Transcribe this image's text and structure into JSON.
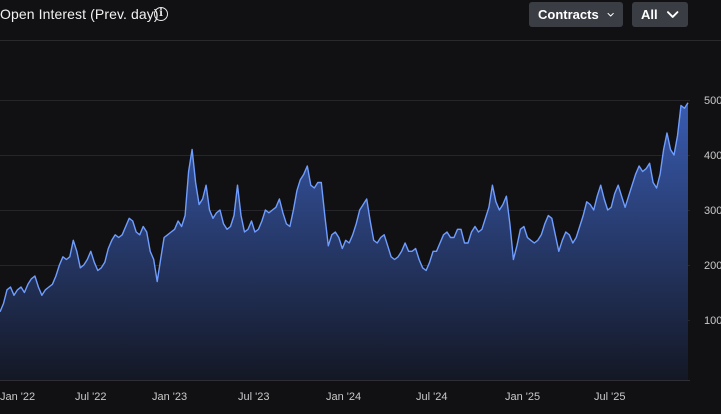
{
  "header": {
    "title": "Open Interest (Prev. day)",
    "info_icon": "info-icon",
    "metric_select": {
      "label": "Contracts",
      "icon": "chevron-down-icon"
    },
    "range_select": {
      "label": "All",
      "icon": "chevron-down-icon"
    }
  },
  "colors": {
    "background": "#111113",
    "line": "#6f9dff",
    "area_top": "#3b5fb8",
    "area_bottom": "#141826",
    "gridline": "#26262a",
    "button_bg": "#3a3d44"
  },
  "chart_data": {
    "type": "area",
    "title": "",
    "xlabel": "",
    "ylabel": "",
    "x_tick_labels": [
      "Jan '22",
      "Jul '22",
      "Jan '23",
      "Jul '23",
      "Jan '24",
      "Jul '24",
      "Jan '25",
      "Jul '25"
    ],
    "y_tick_labels": [
      "100",
      "200",
      "300",
      "400",
      "500"
    ],
    "ylim": [
      0,
      550
    ],
    "grid": true,
    "series": [
      {
        "values": [
          115,
          130,
          155,
          160,
          145,
          155,
          160,
          150,
          165,
          175,
          180,
          160,
          145,
          155,
          160,
          165,
          180,
          200,
          215,
          210,
          215,
          245,
          225,
          195,
          200,
          210,
          225,
          205,
          190,
          195,
          205,
          230,
          245,
          255,
          250,
          255,
          270,
          285,
          280,
          260,
          255,
          270,
          260,
          225,
          210,
          170,
          210,
          250,
          255,
          260,
          265,
          280,
          270,
          290,
          370,
          410,
          350,
          310,
          320,
          345,
          300,
          285,
          295,
          300,
          275,
          265,
          270,
          290,
          345,
          290,
          260,
          265,
          280,
          260,
          265,
          280,
          300,
          295,
          300,
          305,
          320,
          295,
          275,
          270,
          300,
          335,
          355,
          365,
          380,
          345,
          340,
          350,
          350,
          290,
          235,
          255,
          260,
          250,
          230,
          245,
          240,
          255,
          275,
          300,
          310,
          320,
          280,
          245,
          240,
          250,
          255,
          235,
          215,
          210,
          215,
          225,
          240,
          225,
          225,
          230,
          210,
          195,
          190,
          205,
          225,
          225,
          240,
          255,
          260,
          250,
          250,
          265,
          265,
          240,
          240,
          260,
          270,
          260,
          265,
          285,
          305,
          345,
          315,
          300,
          310,
          325,
          275,
          210,
          235,
          265,
          270,
          250,
          245,
          240,
          245,
          255,
          275,
          290,
          285,
          255,
          225,
          245,
          260,
          255,
          240,
          250,
          270,
          290,
          315,
          310,
          300,
          325,
          345,
          320,
          300,
          305,
          330,
          345,
          325,
          305,
          325,
          345,
          365,
          380,
          370,
          375,
          385,
          350,
          340,
          365,
          410,
          440,
          410,
          400,
          435,
          490,
          485,
          495
        ]
      }
    ]
  }
}
